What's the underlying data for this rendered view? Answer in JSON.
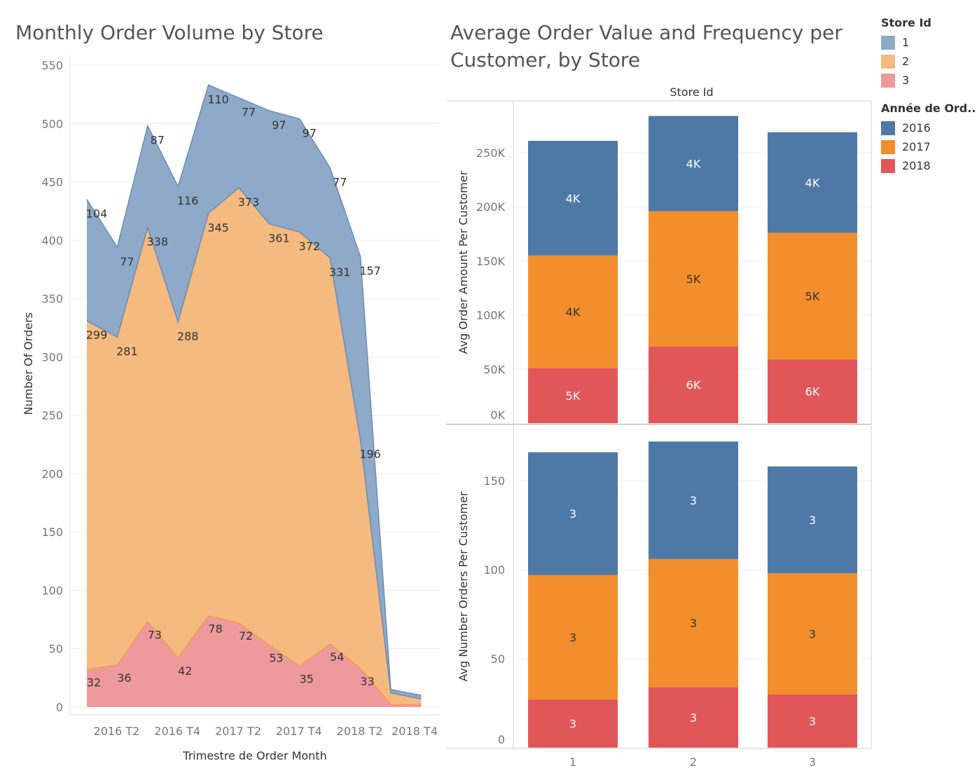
{
  "colors": {
    "store_1_area": "#8FAAC9",
    "store_2_area": "#F5BA80",
    "store_3_area": "#EE9A9C",
    "store_1_line": "#6B8BB3",
    "store_2_line": "#EE9A4F",
    "store_3_line": "#E8767E",
    "year_2016": "#4E79A7",
    "year_2017": "#F28E2B",
    "year_2018": "#E15759"
  },
  "legend_store": {
    "title": "Store Id",
    "items": [
      "1",
      "2",
      "3"
    ]
  },
  "legend_year": {
    "title": "Année de Ord..",
    "items": [
      "2016",
      "2017",
      "2018"
    ]
  },
  "chart_data": [
    {
      "type": "area",
      "stacked": true,
      "title": "Monthly Order Volume by Store",
      "xlabel": "Trimestre de Order Month",
      "ylabel": "Number Of Orders",
      "ylim": [
        0,
        550
      ],
      "yticks": [
        0,
        50,
        100,
        150,
        200,
        250,
        300,
        350,
        400,
        450,
        500,
        550
      ],
      "xtick_labels": [
        "2016 T2",
        "2016 T4",
        "2017 T2",
        "2017 T4",
        "2018 T2",
        "2018 T4"
      ],
      "x_points": [
        0,
        1,
        2,
        3,
        4,
        5,
        6,
        7,
        8,
        9,
        10,
        11
      ],
      "xtick_positions": [
        1,
        3,
        5,
        7,
        9,
        11
      ],
      "grid": true,
      "series": [
        {
          "name": "3",
          "values": [
            32,
            36,
            73,
            42,
            78,
            72,
            53,
            35,
            54,
            33,
            2,
            2
          ],
          "labels": [
            "32",
            "36",
            "73",
            "42",
            "78",
            "72",
            "53",
            "35",
            "54",
            "33",
            "",
            ""
          ]
        },
        {
          "name": "2",
          "values": [
            299,
            281,
            338,
            288,
            345,
            373,
            361,
            372,
            331,
            196,
            10,
            5
          ],
          "labels": [
            "299",
            "281",
            "338",
            "288",
            "345",
            "373",
            "361",
            "372",
            "331",
            "196",
            "",
            ""
          ]
        },
        {
          "name": "1",
          "values": [
            104,
            77,
            87,
            116,
            110,
            77,
            97,
            97,
            77,
            157,
            3,
            3
          ],
          "labels": [
            "104",
            "77",
            "87",
            "116",
            "110",
            "77",
            "97",
            "97",
            "77",
            "157",
            "",
            ""
          ]
        }
      ]
    },
    {
      "type": "bar",
      "stacked": true,
      "title": "Average Order Value and Frequency per Customer, by Store",
      "column_header": "Store Id",
      "categories": [
        "1",
        "2",
        "3"
      ],
      "xlabel": "",
      "panels": [
        {
          "ylabel": "Avg Order Amount Per Customer",
          "ylim": [
            0,
            270000
          ],
          "yticks": [
            0,
            50000,
            100000,
            150000,
            200000,
            250000
          ],
          "ytick_labels": [
            "0K",
            "50K",
            "100K",
            "150K",
            "200K",
            "250K"
          ],
          "series": [
            {
              "name": "2018",
              "values": [
                51000,
                71000,
                59000
              ],
              "labels": [
                "5K",
                "6K",
                "6K"
              ]
            },
            {
              "name": "2017",
              "values": [
                104000,
                125000,
                117000
              ],
              "labels": [
                "4K",
                "5K",
                "5K"
              ]
            },
            {
              "name": "2016",
              "values": [
                106000,
                88000,
                93000
              ],
              "labels": [
                "4K",
                "4K",
                "4K"
              ]
            }
          ]
        },
        {
          "ylabel": "Avg Number Orders Per Customer",
          "ylim": [
            0,
            170
          ],
          "yticks": [
            0,
            50,
            100,
            150
          ],
          "ytick_labels": [
            "0",
            "50",
            "100",
            "150"
          ],
          "series": [
            {
              "name": "2018",
              "values": [
                27,
                34,
                30
              ],
              "labels": [
                "3",
                "3",
                "3"
              ]
            },
            {
              "name": "2017",
              "values": [
                70,
                72,
                68
              ],
              "labels": [
                "3",
                "3",
                "3"
              ]
            },
            {
              "name": "2016",
              "values": [
                69,
                66,
                60
              ],
              "labels": [
                "3",
                "3",
                "3"
              ]
            }
          ]
        }
      ]
    }
  ]
}
